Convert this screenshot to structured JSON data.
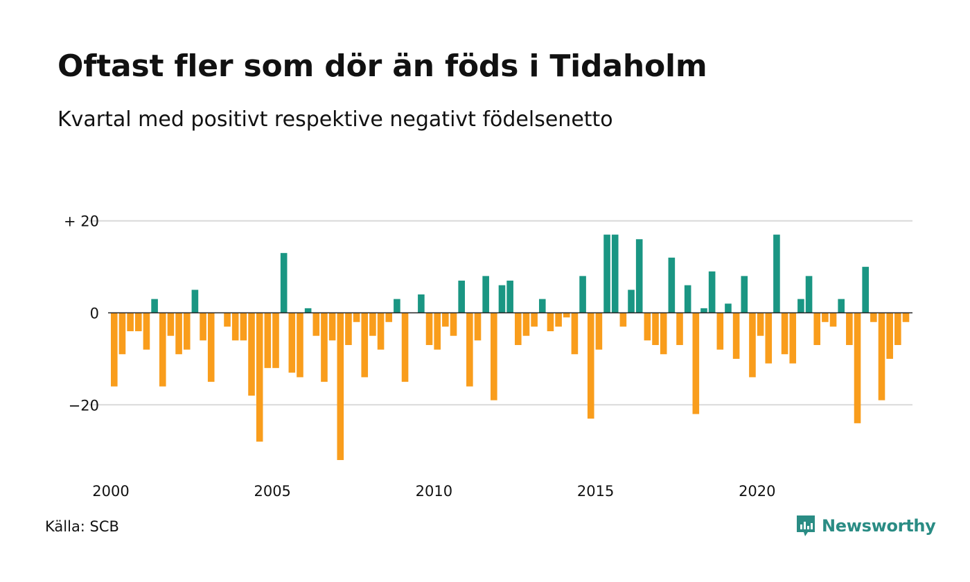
{
  "title": "Oftast fler som dör än föds i Tidaholm",
  "subtitle": "Kvartal med positivt respektive negativt födelsenetto",
  "source": "Källa: SCB",
  "brand": {
    "name": "Newsworthy",
    "icon": "newsworthy-logo-icon"
  },
  "colors": {
    "positive": "#1a9683",
    "negative": "#f99d1c",
    "grid": "#d9d9d9",
    "zero": "#222222"
  },
  "chart_data": {
    "type": "bar",
    "title": "Oftast fler som dör än föds i Tidaholm",
    "subtitle": "Kvartal med positivt respektive negativt födelsenetto",
    "xlabel": "",
    "ylabel": "",
    "ylim": [
      -33,
      20
    ],
    "grid": true,
    "y_ticks": [
      {
        "value": 20,
        "label": "+ 20"
      },
      {
        "value": 0,
        "label": "0"
      },
      {
        "value": -20,
        "label": "−20"
      }
    ],
    "x_ticks": [
      {
        "year": 2000,
        "label": "2000"
      },
      {
        "year": 2005,
        "label": "2005"
      },
      {
        "year": 2010,
        "label": "2010"
      },
      {
        "year": 2015,
        "label": "2015"
      },
      {
        "year": 2020,
        "label": "2020"
      }
    ],
    "start_year": 2000,
    "values": [
      -16,
      -9,
      -4,
      -4,
      -8,
      3,
      -16,
      -5,
      -9,
      -8,
      5,
      -6,
      -15,
      0,
      -3,
      -6,
      -6,
      -18,
      -28,
      -12,
      -12,
      13,
      -13,
      -14,
      1,
      -5,
      -15,
      -6,
      -32,
      -7,
      -2,
      -14,
      -5,
      -8,
      -2,
      3,
      -15,
      0,
      4,
      -7,
      -8,
      -3,
      -5,
      7,
      -16,
      -6,
      8,
      -19,
      6,
      7,
      -7,
      -5,
      -3,
      3,
      -4,
      -3,
      -1,
      -9,
      8,
      -23,
      -8,
      17,
      17,
      -3,
      5,
      16,
      -6,
      -7,
      -9,
      12,
      -7,
      6,
      -22,
      1,
      9,
      -8,
      2,
      -10,
      8,
      -14,
      -5,
      -11,
      17,
      -9,
      -11,
      3,
      8,
      -7,
      -2,
      -3,
      3,
      -7,
      -24,
      10,
      -2,
      -19,
      -10,
      -7,
      -2
    ]
  }
}
